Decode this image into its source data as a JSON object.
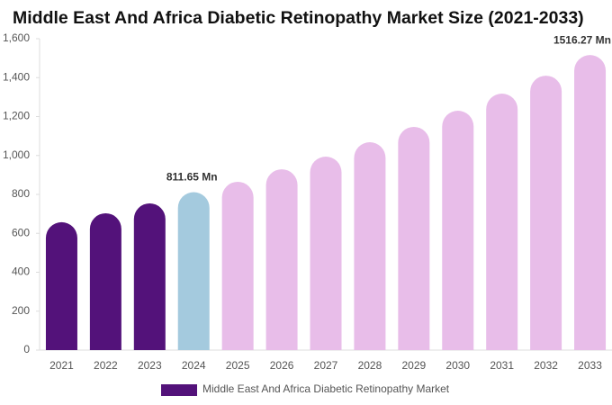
{
  "chart_data": {
    "type": "bar",
    "title": "Middle East And Africa Diabetic Retinopathy Market Size (2021-2033)",
    "categories": [
      "2021",
      "2022",
      "2023",
      "2024",
      "2025",
      "2026",
      "2027",
      "2028",
      "2029",
      "2030",
      "2031",
      "2032",
      "2033"
    ],
    "series": [
      {
        "name": "Middle East And Africa Diabetic Retinopathy Market",
        "color": "#53127a",
        "colors": [
          "#53127a",
          "#53127a",
          "#53127a",
          "#a4cade",
          "#e8bde9",
          "#e8bde9",
          "#e8bde9",
          "#e8bde9",
          "#e8bde9",
          "#e8bde9",
          "#e8bde9",
          "#e8bde9",
          "#e8bde9"
        ],
        "values": [
          657,
          703,
          754,
          811.65,
          865,
          929,
          994,
          1068,
          1147,
          1230,
          1318,
          1410,
          1516.27
        ],
        "value_labels": [
          null,
          null,
          null,
          "811.65 Mn",
          null,
          null,
          null,
          null,
          null,
          null,
          null,
          null,
          "1516.27 Mn"
        ]
      }
    ],
    "ylim": [
      0,
      1600
    ],
    "yticks": [
      0,
      200,
      400,
      600,
      800,
      {
        "value": 1000,
        "label": "1,000"
      },
      {
        "value": 1200,
        "label": "1,200"
      },
      {
        "value": 1400,
        "label": "1,400"
      },
      {
        "value": 1600,
        "label": "1,600"
      }
    ],
    "legend": "bottom"
  }
}
